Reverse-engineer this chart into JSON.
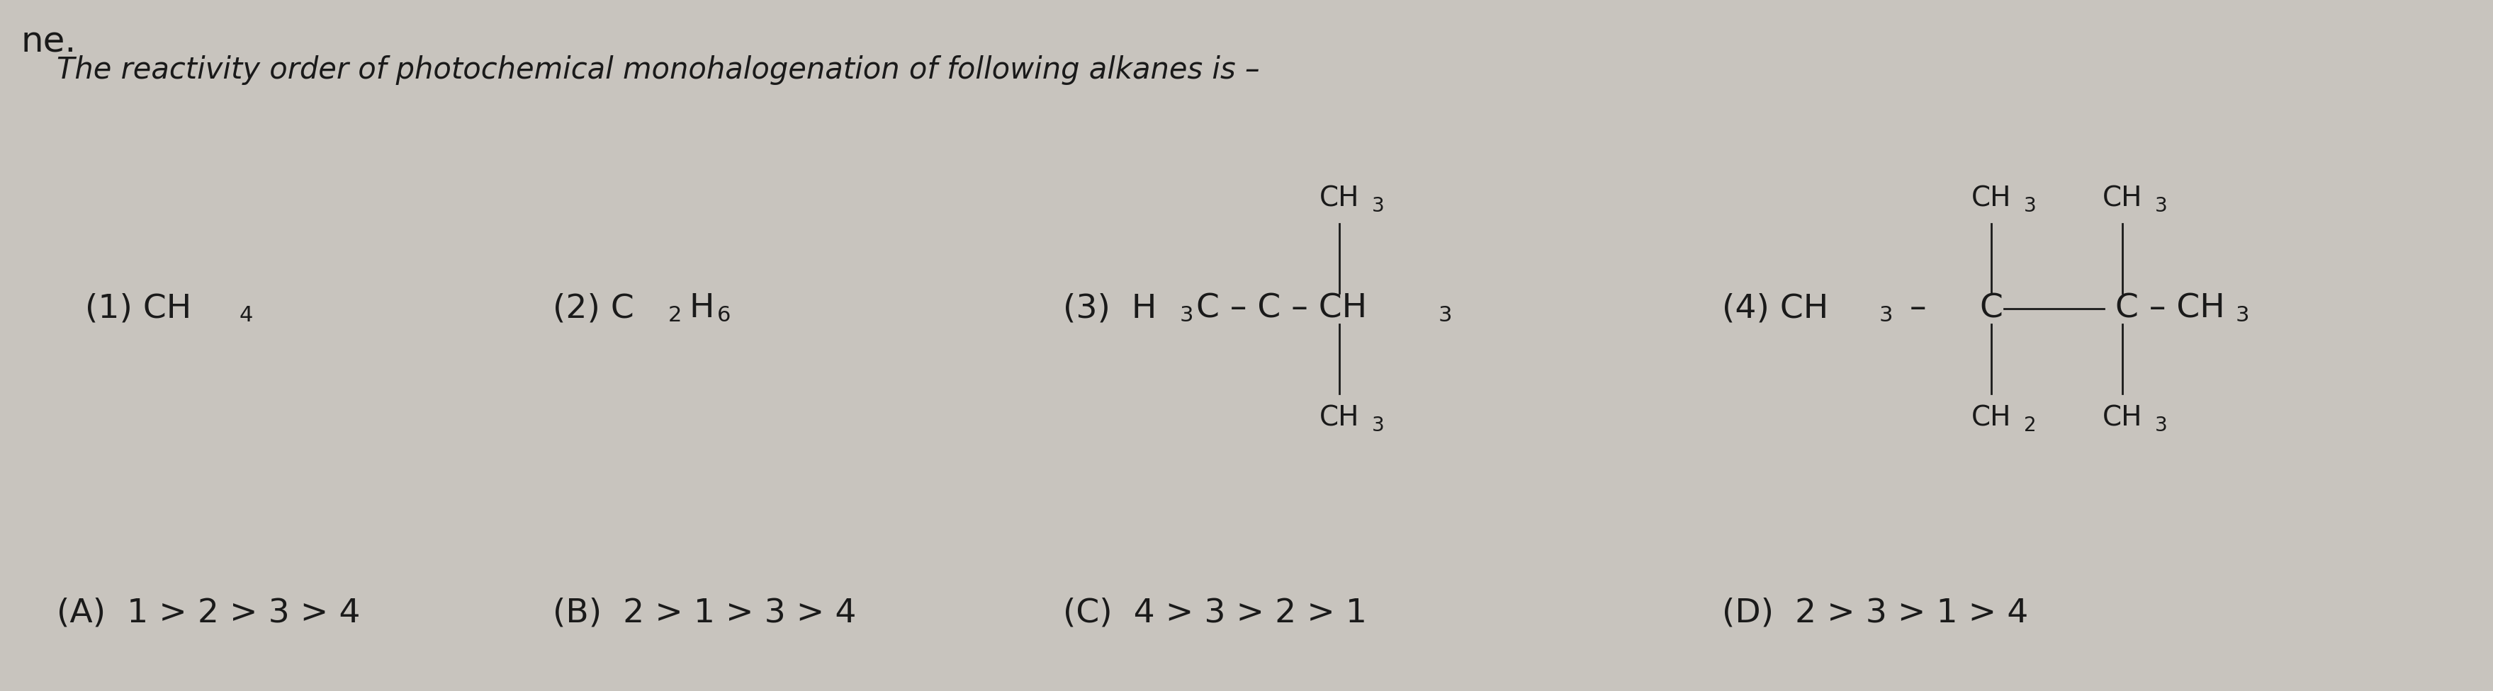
{
  "bg_color": "#c8c4be",
  "text_color": "#1a1a1a",
  "title_prefix": "ne.",
  "question": "The reactivity order of photochemical monohalogenation of following alkanes is –",
  "optA": "(A)  1 > 2 > 3 > 4",
  "optB": "(B)  2 > 1 > 3 > 4",
  "optC": "(C)  4 > 3 > 2 > 1",
  "optD": "(D)  2 > 3 > 1 > 4",
  "font_title": 36,
  "font_question": 30,
  "font_compound": 34,
  "font_struct": 28,
  "font_subscript": 22,
  "font_options": 34
}
